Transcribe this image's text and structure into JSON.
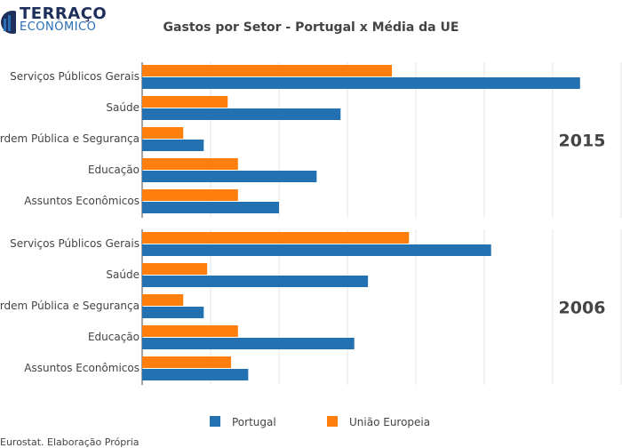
{
  "logo": {
    "top": "TERRAÇO",
    "bottom": "ECONÔMICO"
  },
  "source": "Eurostat. Elaboração Própria",
  "chart_data": {
    "type": "bar",
    "orientation": "horizontal",
    "title": "Gastos por Setor - Portugal x Média da UE",
    "xlim": [
      0,
      7
    ],
    "grid": true,
    "legend_position": "bottom",
    "colors": {
      "Portugal": "#2471b2",
      "União Europeia": "#ff7f0e"
    },
    "legend": [
      "Portugal",
      "União Europeia"
    ],
    "panels": [
      {
        "label": "2015",
        "categories": [
          "Serviços Públicos Gerais",
          "Saúde",
          "Ordem Pública e Segurança",
          "Educação",
          "Assuntos Econômicos"
        ],
        "series": [
          {
            "name": "Portugal",
            "values": [
              6.4,
              2.9,
              0.9,
              2.55,
              2.0
            ]
          },
          {
            "name": "União Europeia",
            "values": [
              3.65,
              1.25,
              0.6,
              1.4,
              1.4
            ]
          }
        ]
      },
      {
        "label": "2006",
        "categories": [
          "Serviços Públicos Gerais",
          "Saúde",
          "Ordem Pública e Segurança",
          "Educação",
          "Assuntos Econômicos"
        ],
        "series": [
          {
            "name": "Portugal",
            "values": [
              5.1,
              3.3,
              0.9,
              3.1,
              1.55
            ]
          },
          {
            "name": "União Europeia",
            "values": [
              3.9,
              0.95,
              0.6,
              1.4,
              1.3
            ]
          }
        ]
      }
    ]
  }
}
